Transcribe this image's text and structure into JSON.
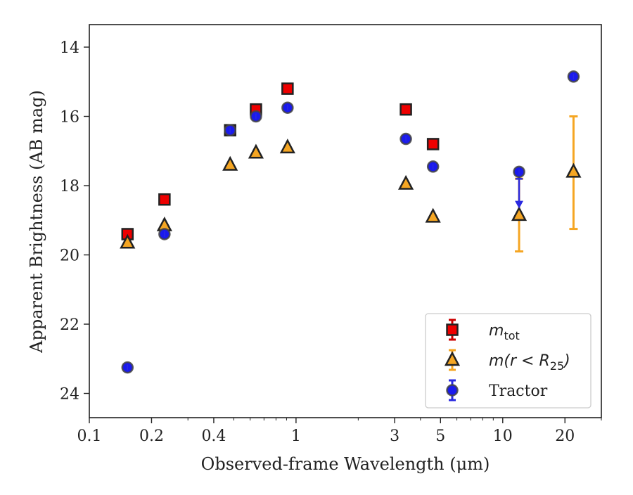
{
  "chart_data": {
    "type": "scatter",
    "xlabel": "Observed-frame Wavelength (μm)",
    "ylabel": "Apparent Brightness (AB mag)",
    "xscale": "log",
    "xlim": [
      0.1,
      30
    ],
    "ylim": [
      24.7,
      13.35
    ],
    "y_inverted": true,
    "grid": false,
    "legend_position": "bottom-right",
    "x_ticks": [
      {
        "value": 0.1,
        "label": "0.1"
      },
      {
        "value": 0.2,
        "label": "0.2"
      },
      {
        "value": 0.4,
        "label": "0.4"
      },
      {
        "value": 1,
        "label": "1"
      },
      {
        "value": 3,
        "label": "3"
      },
      {
        "value": 5,
        "label": "5"
      },
      {
        "value": 10,
        "label": "10"
      },
      {
        "value": 20,
        "label": "20"
      }
    ],
    "y_ticks": [
      {
        "value": 14,
        "label": "14"
      },
      {
        "value": 16,
        "label": "16"
      },
      {
        "value": 18,
        "label": "18"
      },
      {
        "value": 20,
        "label": "20"
      },
      {
        "value": 22,
        "label": "22"
      },
      {
        "value": 24,
        "label": "24"
      }
    ],
    "series": [
      {
        "name": "m_tot",
        "legend_label": "m",
        "legend_sub": "tot",
        "marker": "square",
        "color": "#ee0000",
        "errcolor": "#cc0000",
        "points": [
          {
            "x": 0.153,
            "y": 19.4
          },
          {
            "x": 0.231,
            "y": 18.4
          },
          {
            "x": 0.48,
            "y": 16.4
          },
          {
            "x": 0.64,
            "y": 15.8
          },
          {
            "x": 0.91,
            "y": 15.2
          },
          {
            "x": 3.4,
            "y": 15.8
          },
          {
            "x": 4.6,
            "y": 16.8
          }
        ]
      },
      {
        "name": "m(r < R_25)",
        "legend_label": "m(r < R",
        "legend_sub": "25",
        "legend_suffix": ")",
        "marker": "triangle",
        "color": "#f5a623",
        "errcolor": "#f5a623",
        "points": [
          {
            "x": 0.153,
            "y": 19.65
          },
          {
            "x": 0.231,
            "y": 19.15
          },
          {
            "x": 0.48,
            "y": 17.4
          },
          {
            "x": 0.64,
            "y": 17.05
          },
          {
            "x": 0.91,
            "y": 16.9
          },
          {
            "x": 3.4,
            "y": 17.95
          },
          {
            "x": 4.6,
            "y": 18.9
          },
          {
            "x": 12.0,
            "y": 18.85,
            "yerr_low": 17.8,
            "yerr_high": 19.9
          },
          {
            "x": 22.0,
            "y": 17.6,
            "yerr_low": 16.0,
            "yerr_high": 19.25
          }
        ]
      },
      {
        "name": "Tractor",
        "legend_label": "Tractor",
        "marker": "circle",
        "color": "#1a1aee",
        "errcolor": "#2a2ae0",
        "points": [
          {
            "x": 0.153,
            "y": 23.25
          },
          {
            "x": 0.231,
            "y": 19.4
          },
          {
            "x": 0.48,
            "y": 16.4
          },
          {
            "x": 0.64,
            "y": 16.0
          },
          {
            "x": 0.91,
            "y": 15.75
          },
          {
            "x": 3.4,
            "y": 16.65
          },
          {
            "x": 4.6,
            "y": 17.45
          },
          {
            "x": 12.0,
            "y": 17.6,
            "upper_limit_to": 18.6
          },
          {
            "x": 22.0,
            "y": 14.85
          }
        ]
      }
    ]
  }
}
